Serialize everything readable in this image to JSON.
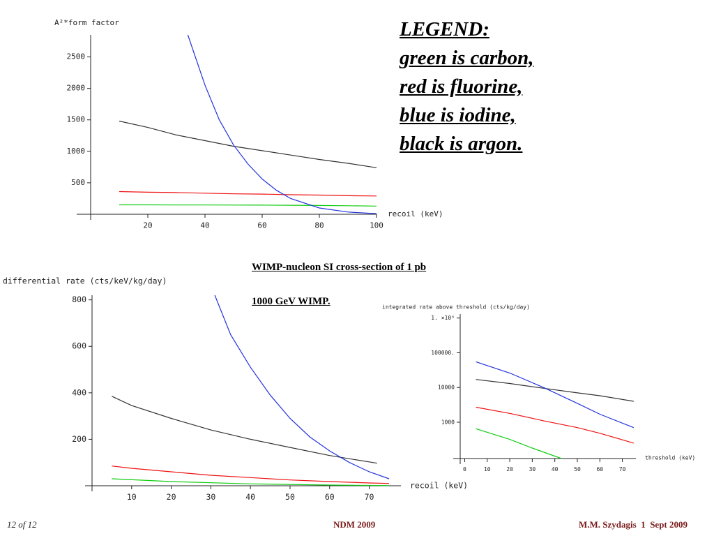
{
  "legend_text": [
    "LEGEND:",
    "green is carbon,",
    "red is fluorine,",
    "blue is iodine,",
    "black is argon."
  ],
  "caption": [
    "WIMP-nucleon SI cross-section of 1 pb",
    "1000 GeV WIMP."
  ],
  "footer": {
    "page": "12 of 12",
    "center": "NDM 2009",
    "right": "M.M. Szydagis  1  Sept 2009"
  },
  "chart_data": [
    {
      "type": "line",
      "ylabel": "A²*form factor",
      "xlabel": "recoil  (keV)",
      "xlim": [
        0,
        100
      ],
      "ylim": [
        0,
        2850
      ],
      "xticks": [
        20,
        40,
        60,
        80,
        100
      ],
      "yticks": [
        500,
        1000,
        1500,
        2000,
        2500
      ],
      "series": [
        {
          "color": "#333333",
          "x": [
            10,
            20,
            30,
            40,
            50,
            60,
            70,
            80,
            90,
            100
          ],
          "values": [
            1480,
            1380,
            1260,
            1170,
            1080,
            1010,
            940,
            870,
            810,
            740
          ]
        },
        {
          "color": "#ee1111",
          "x": [
            10,
            20,
            30,
            40,
            50,
            60,
            70,
            80,
            90,
            100
          ],
          "values": [
            360,
            350,
            345,
            335,
            325,
            320,
            310,
            305,
            295,
            290
          ]
        },
        {
          "color": "#11cc11",
          "x": [
            10,
            20,
            30,
            40,
            50,
            60,
            70,
            80,
            90,
            100
          ],
          "values": [
            150,
            150,
            148,
            147,
            146,
            145,
            143,
            140,
            135,
            130
          ]
        },
        {
          "color": "#2233dd",
          "x": [
            34,
            40,
            45,
            50,
            55,
            60,
            65,
            70,
            80,
            90,
            100
          ],
          "values": [
            2850,
            2050,
            1500,
            1100,
            800,
            560,
            380,
            250,
            100,
            35,
            10
          ]
        }
      ]
    },
    {
      "type": "line",
      "ylabel": "differential  rate  (cts/keV/kg/day)",
      "xlabel": "recoil  (keV)",
      "xlim": [
        0,
        78
      ],
      "ylim": [
        0,
        820
      ],
      "xticks": [
        10,
        20,
        30,
        40,
        50,
        60,
        70
      ],
      "yticks": [
        200,
        400,
        600,
        800
      ],
      "series": [
        {
          "color": "#333333",
          "x": [
            5,
            10,
            20,
            30,
            40,
            50,
            60,
            72
          ],
          "values": [
            385,
            345,
            290,
            240,
            200,
            165,
            130,
            97
          ]
        },
        {
          "color": "#ee1111",
          "x": [
            5,
            10,
            20,
            30,
            40,
            50,
            60,
            70,
            75
          ],
          "values": [
            85,
            75,
            60,
            45,
            35,
            25,
            18,
            12,
            10
          ]
        },
        {
          "color": "#11cc11",
          "x": [
            5,
            20,
            40,
            60,
            75
          ],
          "values": [
            30,
            18,
            8,
            3,
            1
          ]
        },
        {
          "color": "#2233dd",
          "x": [
            31,
            35,
            40,
            45,
            50,
            55,
            60,
            65,
            70,
            75
          ],
          "values": [
            820,
            650,
            510,
            390,
            290,
            210,
            150,
            100,
            60,
            30
          ]
        }
      ]
    },
    {
      "type": "line",
      "log_y": true,
      "ylabel": "integrated  rate  above  threshold  (cts/kg/day)",
      "xlabel": "threshold  (keV)",
      "xlim": [
        -2,
        76
      ],
      "ylim": [
        90,
        1300000
      ],
      "xticks": [
        0,
        10,
        20,
        30,
        40,
        50,
        60,
        70
      ],
      "yticks": [
        1000,
        10000,
        {
          "value": 100000,
          "label": "100000."
        },
        {
          "value": 1000000,
          "label": "1. ×10⁶"
        }
      ],
      "series": [
        {
          "color": "#333333",
          "x": [
            5,
            20,
            35,
            50,
            60,
            75
          ],
          "values": [
            17000,
            13000,
            9500,
            7000,
            5800,
            4000
          ]
        },
        {
          "color": "#2233dd",
          "x": [
            5,
            20,
            35,
            50,
            60,
            75
          ],
          "values": [
            55000,
            26000,
            10000,
            3500,
            1700,
            700
          ]
        },
        {
          "color": "#ee1111",
          "x": [
            5,
            20,
            35,
            50,
            60,
            75
          ],
          "values": [
            2700,
            1800,
            1100,
            700,
            480,
            250
          ]
        },
        {
          "color": "#11cc11",
          "x": [
            5,
            20,
            30,
            43
          ],
          "values": [
            650,
            320,
            180,
            90
          ]
        }
      ]
    }
  ]
}
